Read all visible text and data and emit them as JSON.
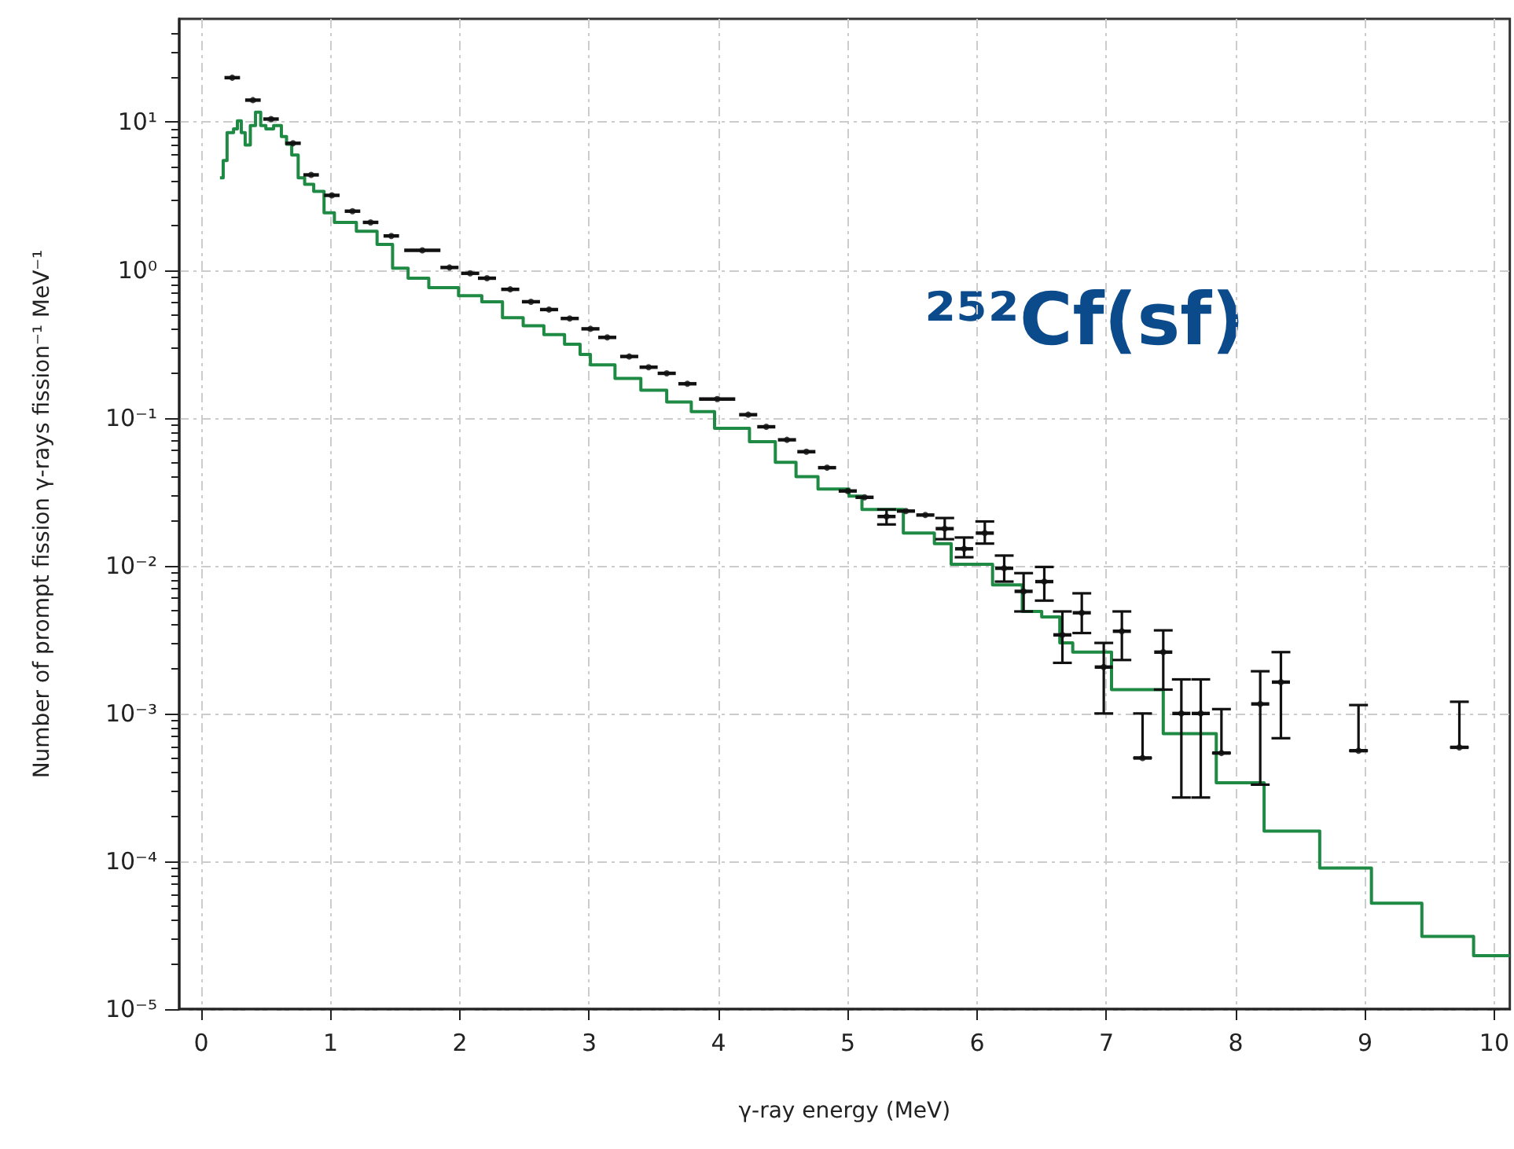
{
  "chart_data": {
    "type": "scatter",
    "xlabel": "γ-ray energy (MeV)",
    "ylabel": "Number of prompt fission γ-rays fission⁻¹ MeV⁻¹",
    "annotations": [
      "²⁵²Cf(sf)"
    ],
    "log": "y",
    "grid": true,
    "xlim": [
      -0.17,
      10.12
    ],
    "ylim": [
      1e-05,
      50
    ],
    "xticks": [
      0,
      1,
      2,
      3,
      4,
      5,
      6,
      7,
      8,
      9,
      10
    ],
    "yticks": [
      {
        "value": 1e-05,
        "label": "10⁻⁵"
      },
      {
        "value": 0.0001,
        "label": "10⁻⁴"
      },
      {
        "value": 0.001,
        "label": "10⁻³"
      },
      {
        "value": 0.01,
        "label": "10⁻²"
      },
      {
        "value": 0.1,
        "label": "10⁻¹"
      },
      {
        "value": 1,
        "label": "10⁰"
      },
      {
        "value": 10,
        "label": "10¹"
      }
    ],
    "series": [
      {
        "color": "#111111",
        "marker": "circle",
        "x": [
          0.24,
          0.4,
          0.54,
          0.71,
          0.85,
          1.01,
          1.17,
          1.31,
          1.47,
          1.71,
          1.92,
          2.08,
          2.21,
          2.39,
          2.55,
          2.69,
          2.85,
          3.01,
          3.14,
          3.31,
          3.46,
          3.6,
          3.76,
          3.99,
          4.23,
          4.37,
          4.53,
          4.68,
          4.84,
          5.0,
          5.13,
          5.3,
          5.45,
          5.6,
          5.75,
          5.9,
          6.06,
          6.21,
          6.36,
          6.52,
          6.66,
          6.81,
          6.98,
          7.12,
          7.28,
          7.44,
          7.58,
          7.73,
          7.89,
          8.19,
          8.35,
          8.95,
          9.73
        ],
        "values": [
          20,
          14.1,
          10.5,
          7.2,
          4.4,
          3.2,
          2.5,
          2.1,
          1.7,
          1.36,
          1.04,
          0.95,
          0.88,
          0.74,
          0.61,
          0.54,
          0.47,
          0.4,
          0.35,
          0.26,
          0.22,
          0.2,
          0.17,
          0.134,
          0.105,
          0.087,
          0.071,
          0.059,
          0.046,
          0.032,
          0.029,
          0.0215,
          0.0234,
          0.022,
          0.0178,
          0.013,
          0.0166,
          0.0096,
          0.0067,
          0.0078,
          0.0034,
          0.0048,
          0.00206,
          0.0036,
          0.0005,
          0.0026,
          0.001,
          0.001,
          0.00054,
          0.00116,
          0.00163,
          0.00056,
          0.00059
        ],
        "xerrors": [
          0.06,
          0.06,
          0.06,
          0.06,
          0.06,
          0.06,
          0.06,
          0.06,
          0.06,
          0.14,
          0.07,
          0.07,
          0.07,
          0.07,
          0.07,
          0.07,
          0.07,
          0.07,
          0.07,
          0.07,
          0.07,
          0.07,
          0.07,
          0.14,
          0.07,
          0.07,
          0.07,
          0.07,
          0.07,
          0.07,
          0.07,
          0.07,
          0.07,
          0.07,
          0.07,
          0.07,
          0.07,
          0.07,
          0.07,
          0.07,
          0.07,
          0.07,
          0.07,
          0.07,
          0.07,
          0.07,
          0.07,
          0.07,
          0.07,
          0.07,
          0.07,
          0.07,
          0.07
        ],
        "errors": [
          null,
          null,
          null,
          null,
          null,
          null,
          null,
          null,
          null,
          null,
          null,
          null,
          null,
          null,
          null,
          null,
          null,
          null,
          null,
          null,
          null,
          null,
          null,
          null,
          null,
          null,
          null,
          null,
          null,
          null,
          null,
          [
            0.019,
            0.024
          ],
          null,
          null,
          [
            0.0151,
            0.021
          ],
          [
            0.0114,
            0.0155
          ],
          [
            0.0141,
            0.0199
          ],
          [
            0.0078,
            0.0117
          ],
          [
            0.0049,
            0.0089
          ],
          [
            0.0058,
            0.0098
          ],
          [
            0.0022,
            0.0049
          ],
          [
            0.0035,
            0.0065
          ],
          [
            0.001,
            0.003
          ],
          [
            0.0023,
            0.0049
          ],
          [
            0.0005,
            0.001
          ],
          [
            0.00145,
            0.00365
          ],
          [
            0.00027,
            0.0017
          ],
          [
            0.00027,
            0.0017
          ],
          [
            0.00054,
            0.00107
          ],
          [
            0.00033,
            0.00193
          ],
          [
            0.00068,
            0.0026
          ],
          [
            0.00056,
            0.00114
          ],
          [
            0.00059,
            0.0012
          ]
        ]
      },
      {
        "type": "step",
        "color": "#1e8a44",
        "x": [
          0.145,
          0.17,
          0.2,
          0.25,
          0.28,
          0.31,
          0.34,
          0.38,
          0.42,
          0.46,
          0.5,
          0.56,
          0.62,
          0.66,
          0.7,
          0.75,
          0.8,
          0.87,
          0.95,
          1.03,
          1.2,
          1.36,
          1.48,
          1.6,
          1.76,
          1.99,
          2.17,
          2.33,
          2.49,
          2.65,
          2.81,
          2.93,
          3.01,
          3.2,
          3.4,
          3.6,
          3.79,
          3.97,
          4.24,
          4.44,
          4.6,
          4.77,
          5.01,
          5.11,
          5.43,
          5.67,
          5.8,
          6.12,
          6.35,
          6.5,
          6.64,
          6.74,
          7.04,
          7.44,
          7.85,
          8.22,
          8.65,
          9.05,
          9.44,
          9.84,
          10.12
        ],
        "values": [
          4.2,
          5.5,
          8.5,
          9.0,
          10.2,
          8.5,
          7.0,
          9.5,
          11.7,
          9.5,
          9.0,
          9.5,
          8.0,
          7.1,
          6.0,
          4.2,
          3.8,
          3.4,
          2.44,
          2.1,
          1.83,
          1.49,
          1.03,
          0.88,
          0.76,
          0.67,
          0.61,
          0.475,
          0.42,
          0.366,
          0.315,
          0.268,
          0.228,
          0.185,
          0.154,
          0.128,
          0.11,
          0.085,
          0.069,
          0.05,
          0.04,
          0.033,
          0.0295,
          0.024,
          0.0166,
          0.0141,
          0.0102,
          0.0074,
          0.0049,
          0.0045,
          0.003,
          0.0026,
          0.00145,
          0.00073,
          0.00034,
          0.00016,
          9e-05,
          5.2e-05,
          3.1e-05,
          2.3e-05,
          2.3e-05
        ]
      }
    ]
  }
}
